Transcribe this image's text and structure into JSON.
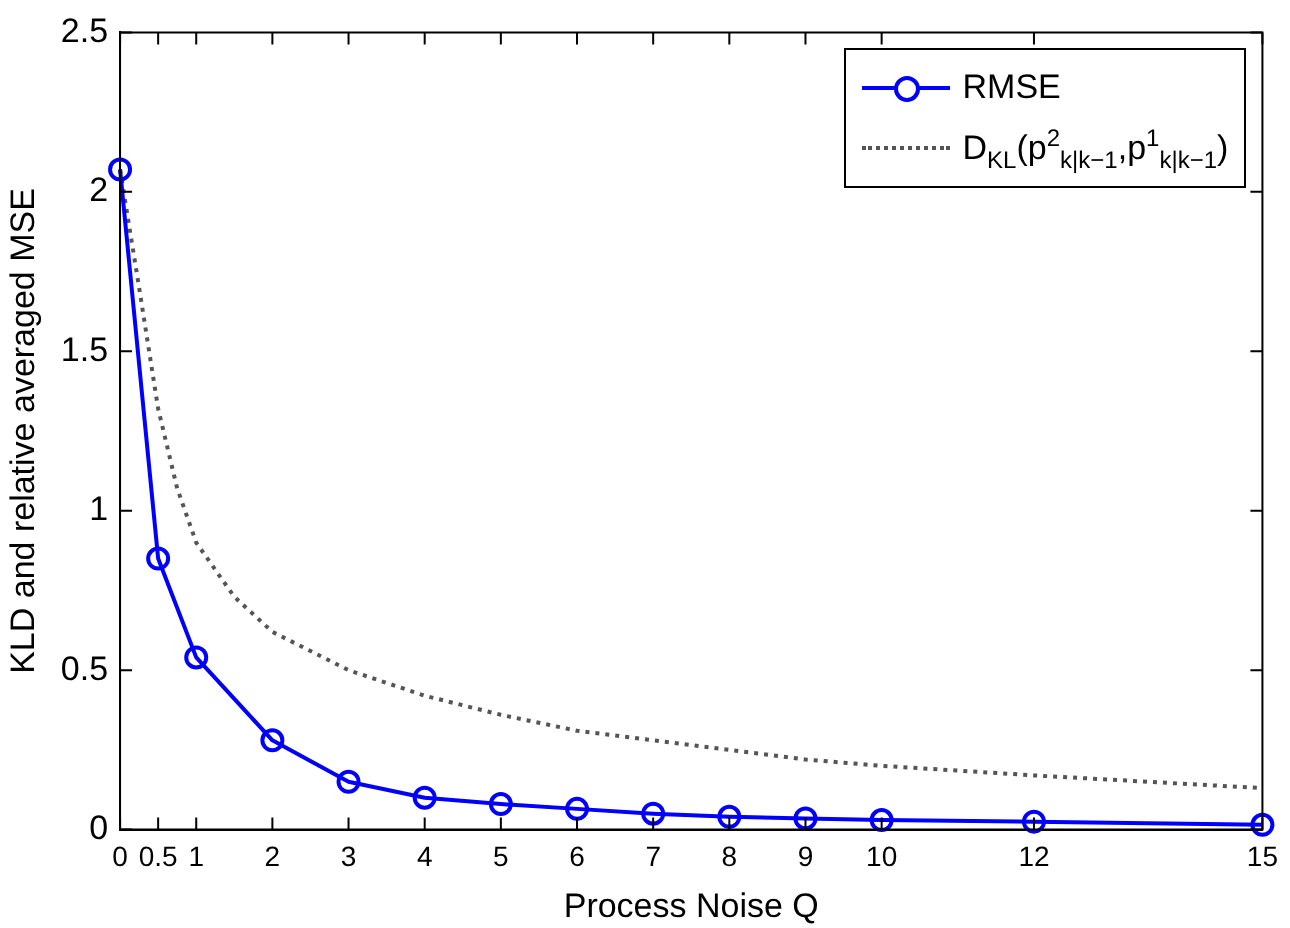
{
  "chart_data": {
    "type": "line",
    "xlabel": "Process Noise Q",
    "ylabel": "KLD and relative averaged MSE",
    "xlim": [
      0,
      15
    ],
    "xticks": [
      0,
      0.5,
      1,
      2,
      3,
      4,
      5,
      6,
      7,
      8,
      9,
      10,
      12,
      15
    ],
    "ylim": [
      0,
      2.5
    ],
    "yticks": [
      0,
      0.5,
      1,
      1.5,
      2,
      2.5
    ],
    "grid": false,
    "legend": "top right",
    "series": [
      {
        "name": "RMSE",
        "color": "#0000ff",
        "marker": "circle",
        "line_style": "solid",
        "x": [
          0,
          0.5,
          1,
          2,
          3,
          4,
          5,
          6,
          7,
          8,
          9,
          10,
          12,
          15
        ],
        "values": [
          2.07,
          0.85,
          0.54,
          0.28,
          0.15,
          0.1,
          0.08,
          0.065,
          0.05,
          0.04,
          0.035,
          0.03,
          0.025,
          0.015
        ]
      },
      {
        "name": "D$_{KL}$(p$^{2}$$_{k|k−1}$,p$^{1}$$_{k|k−1}$)",
        "color": "#555555",
        "marker": "none",
        "line_style": "dotted",
        "x": [
          0,
          0.25,
          0.5,
          0.75,
          1,
          1.5,
          2,
          3,
          4,
          5,
          6,
          7,
          8,
          9,
          10,
          12,
          15
        ],
        "values": [
          2.07,
          1.7,
          1.32,
          1.07,
          0.9,
          0.73,
          0.62,
          0.5,
          0.42,
          0.36,
          0.31,
          0.28,
          0.25,
          0.22,
          0.2,
          0.17,
          0.13
        ]
      }
    ]
  }
}
